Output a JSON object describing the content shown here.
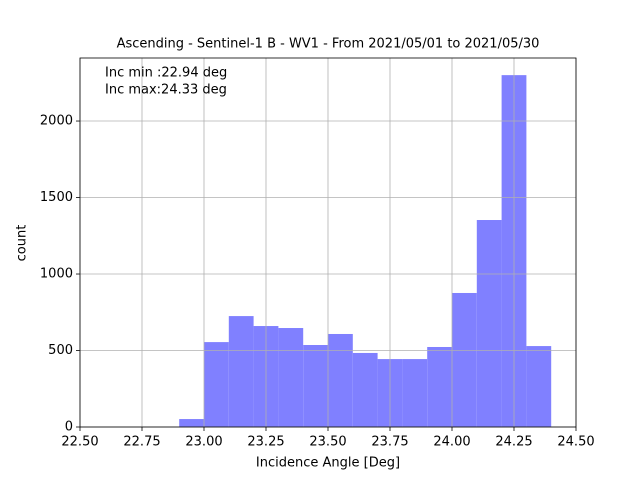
{
  "chart_data": {
    "type": "histogram",
    "title": "Ascending - Sentinel-1 B - WV1 - From 2021/05/01 to 2021/05/30",
    "xlabel": "Incidence Angle [Deg]",
    "ylabel": "count",
    "annotations": [
      "Inc min :22.94 deg",
      "Inc max:24.33 deg"
    ],
    "bins": [
      22.9,
      23.0,
      23.1,
      23.2,
      23.3,
      23.4,
      23.5,
      23.6,
      23.7,
      23.8,
      23.9,
      24.0,
      24.1,
      24.2,
      24.3,
      24.4
    ],
    "values": [
      52,
      555,
      725,
      660,
      647,
      536,
      608,
      484,
      444,
      444,
      523,
      876,
      1353,
      2300,
      529
    ],
    "color": "#8080ff",
    "xlim": [
      22.5,
      24.5
    ],
    "xticks": [
      {
        "value": 22.5,
        "label": "22.50"
      },
      {
        "value": 22.75,
        "label": "22.75"
      },
      {
        "value": 23.0,
        "label": "23.00"
      },
      {
        "value": 23.25,
        "label": "23.25"
      },
      {
        "value": 23.5,
        "label": "23.50"
      },
      {
        "value": 23.75,
        "label": "23.75"
      },
      {
        "value": 24.0,
        "label": "24.00"
      },
      {
        "value": 24.25,
        "label": "24.25"
      },
      {
        "value": 24.5,
        "label": "24.50"
      }
    ],
    "ylim": [
      0,
      2412
    ],
    "yticks": [
      0,
      500,
      1000,
      1500,
      2000
    ],
    "grid": true
  }
}
